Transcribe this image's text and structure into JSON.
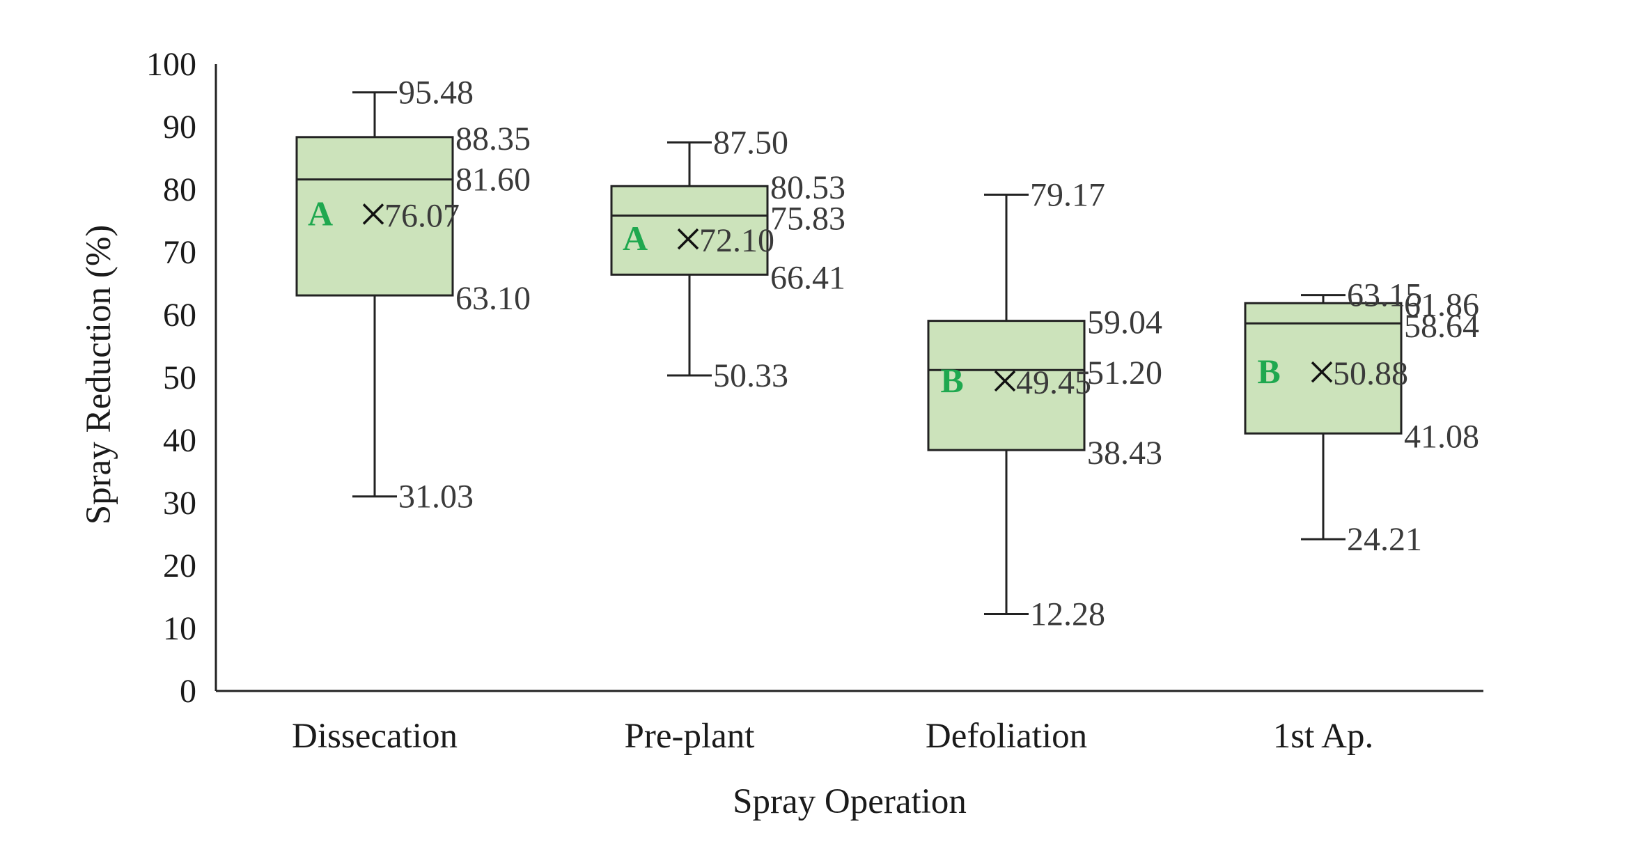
{
  "chart_data": {
    "type": "box",
    "xlabel": "Spray Operation",
    "ylabel": "Spray Reduction (%)",
    "ylim": [
      0,
      100
    ],
    "yticks": [
      "0",
      "10",
      "20",
      "30",
      "40",
      "50",
      "60",
      "70",
      "80",
      "90",
      "100"
    ],
    "grid": false,
    "categories": [
      "Dissecation",
      "Pre-plant",
      "Defoliation",
      "1st Ap."
    ],
    "boxes": [
      {
        "category": "Dissecation",
        "min": 31.03,
        "q1": 63.1,
        "median": 81.6,
        "q3": 88.35,
        "max": 95.48,
        "mean": 76.07,
        "group": "A",
        "labels": {
          "min": "31.03",
          "q1": "63.10",
          "median": "81.60",
          "q3": "88.35",
          "max": "95.48",
          "mean": "76.07"
        }
      },
      {
        "category": "Pre-plant",
        "min": 50.33,
        "q1": 66.41,
        "median": 75.83,
        "q3": 80.53,
        "max": 87.5,
        "mean": 72.1,
        "group": "A",
        "labels": {
          "min": "50.33",
          "q1": "66.41",
          "median": "75.83",
          "q3": "80.53",
          "max": "87.50",
          "mean": "72.10"
        }
      },
      {
        "category": "Defoliation",
        "min": 12.28,
        "q1": 38.43,
        "median": 51.2,
        "q3": 59.04,
        "max": 79.17,
        "mean": 49.45,
        "group": "B",
        "labels": {
          "min": "12.28",
          "q1": "38.43",
          "median": "51.20",
          "q3": "59.04",
          "max": "79.17",
          "mean": "49.45"
        }
      },
      {
        "category": "1st Ap.",
        "min": 24.21,
        "q1": 41.08,
        "median": 58.64,
        "q3": 61.86,
        "max": 63.15,
        "mean": 50.88,
        "group": "B",
        "labels": {
          "min": "24.21",
          "q1": "41.08",
          "median": "58.64",
          "q3": "61.86",
          "max": "63.15",
          "mean": "50.88"
        }
      }
    ],
    "colors": {
      "box_fill": "#cce3bb",
      "group_letter": "#1fa84f",
      "line": "#222222"
    }
  }
}
